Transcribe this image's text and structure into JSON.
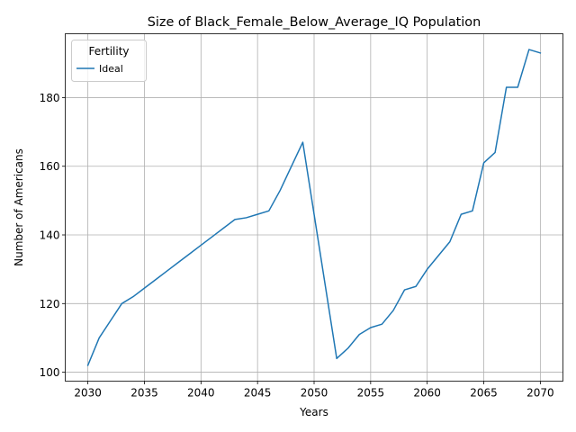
{
  "chart_data": {
    "type": "line",
    "title": "Size of Black_Female_Below_Average_IQ Population",
    "xlabel": "Years",
    "ylabel": "Number of Americans",
    "xlim": [
      2028.0,
      2072.0
    ],
    "ylim": [
      97.4,
      198.6
    ],
    "xticks": [
      2030,
      2035,
      2040,
      2045,
      2050,
      2055,
      2060,
      2065,
      2070
    ],
    "yticks": [
      100,
      120,
      140,
      160,
      180
    ],
    "grid": true,
    "legend": {
      "title": "Fertility",
      "placement": "top-left"
    },
    "series": [
      {
        "name": "Ideal",
        "color": "#1f77b4",
        "x": [
          2030,
          2031,
          2032,
          2033,
          2034,
          2035,
          2036,
          2037,
          2038,
          2039,
          2040,
          2041,
          2042,
          2043,
          2044,
          2045,
          2046,
          2047,
          2048,
          2049,
          2050,
          2051,
          2052,
          2053,
          2054,
          2055,
          2056,
          2057,
          2058,
          2059,
          2060,
          2061,
          2062,
          2063,
          2064,
          2065,
          2066,
          2067,
          2068,
          2069,
          2070
        ],
        "y": [
          102,
          110,
          115,
          120,
          122,
          124.5,
          127,
          129.5,
          132,
          134.5,
          137,
          139.5,
          142,
          144.5,
          145,
          146,
          147,
          153,
          160,
          167,
          146,
          125,
          104,
          107,
          111,
          113,
          114,
          118,
          124,
          125,
          130,
          134,
          138,
          146,
          147,
          161,
          164,
          183,
          183,
          194,
          193
        ]
      }
    ]
  }
}
